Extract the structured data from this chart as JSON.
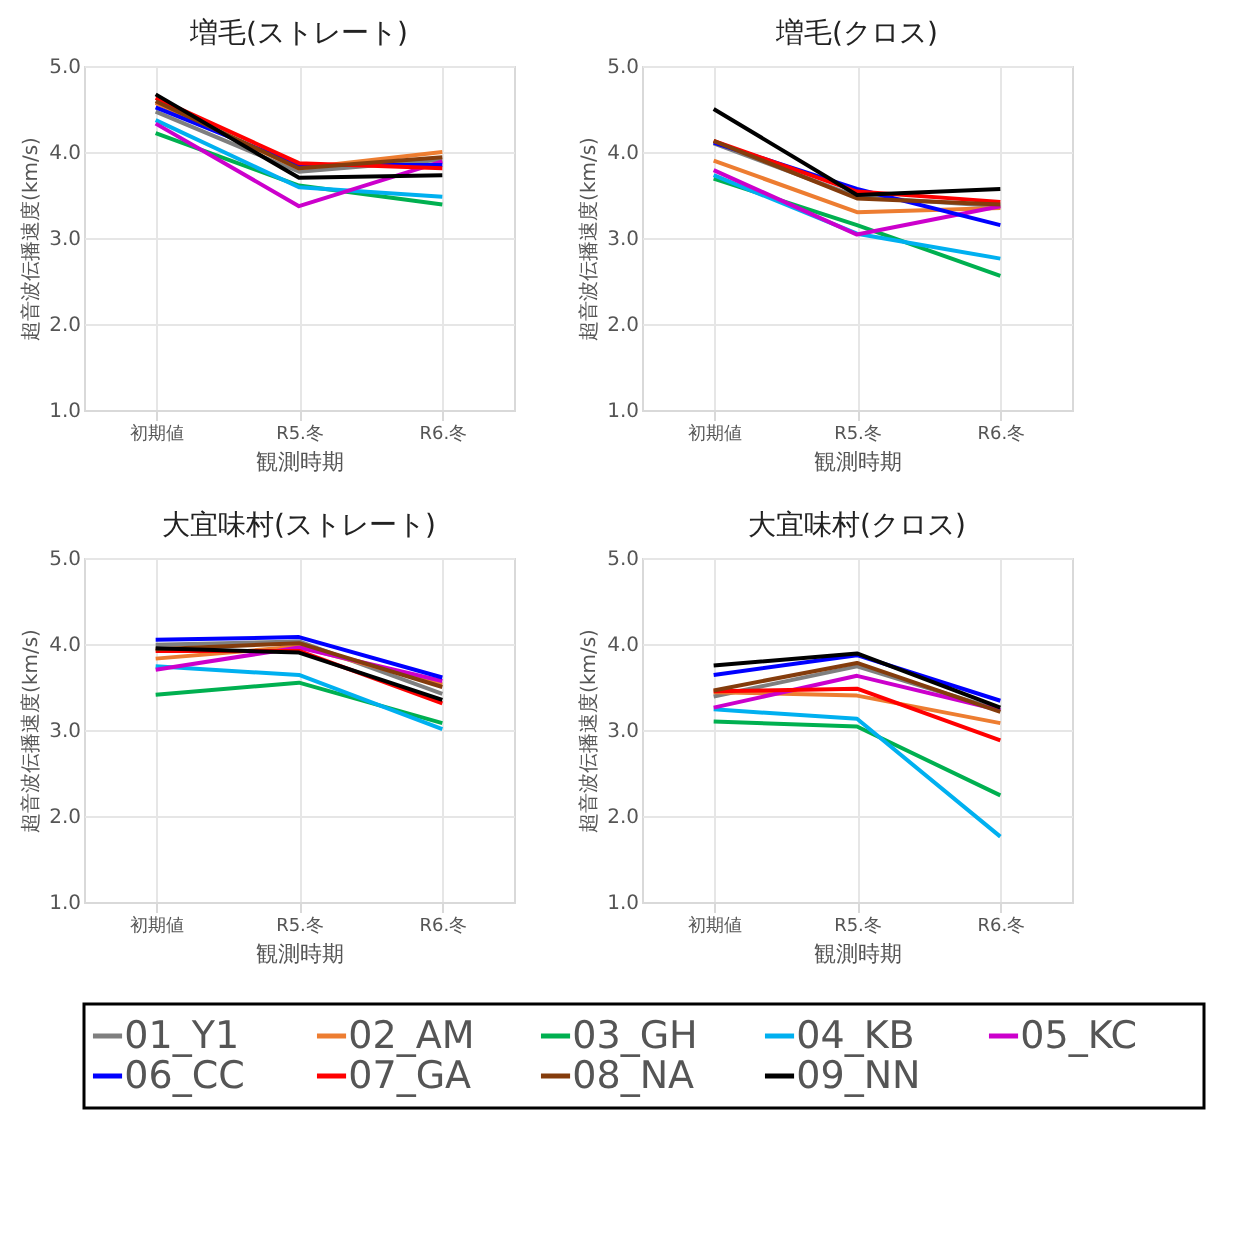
{
  "chart_data": [
    {
      "type": "line",
      "title": "増毛(ストレート)",
      "xlabel": "観測時期",
      "ylabel": "超音波伝播速度(km/s)",
      "categories": [
        "初期値",
        "R5.冬",
        "R6.冬"
      ],
      "ylim": [
        1,
        5
      ],
      "yticks": [
        {
          "value": 1,
          "label": "1.0"
        },
        {
          "value": 2,
          "label": "2.0"
        },
        {
          "value": 3,
          "label": "3.0"
        },
        {
          "value": 4,
          "label": "4.0"
        },
        {
          "value": 5,
          "label": "5.0"
        }
      ],
      "grid": true,
      "legend": "bottom",
      "marker": "none",
      "line_style": "solid",
      "series": [
        {
          "name": "01_Y1",
          "color": "#7f7f7f",
          "values": [
            4.47,
            3.77,
            3.91
          ]
        },
        {
          "name": "02_AM",
          "color": "#ed7d31",
          "values": [
            4.57,
            3.81,
            4.0
          ]
        },
        {
          "name": "03_GH",
          "color": "#00b050",
          "values": [
            4.22,
            3.61,
            3.39
          ]
        },
        {
          "name": "04_KB",
          "color": "#00b0f0",
          "values": [
            4.37,
            3.59,
            3.48
          ]
        },
        {
          "name": "05_KC",
          "color": "#cc00cc",
          "values": [
            4.33,
            3.37,
            3.89
          ]
        },
        {
          "name": "06_CC",
          "color": "#0000ff",
          "values": [
            4.52,
            3.85,
            3.85
          ]
        },
        {
          "name": "07_GA",
          "color": "#ff0000",
          "values": [
            4.63,
            3.87,
            3.81
          ]
        },
        {
          "name": "08_NA",
          "color": "#843c0c",
          "values": [
            4.59,
            3.81,
            3.94
          ]
        },
        {
          "name": "09_NN",
          "color": "#000000",
          "values": [
            4.67,
            3.7,
            3.73
          ]
        }
      ]
    },
    {
      "type": "line",
      "title": "増毛(クロス)",
      "xlabel": "観測時期",
      "ylabel": "超音波伝播速度(km/s)",
      "categories": [
        "初期値",
        "R5.冬",
        "R6.冬"
      ],
      "ylim": [
        1,
        5
      ],
      "yticks": [
        {
          "value": 1,
          "label": "1.0"
        },
        {
          "value": 2,
          "label": "2.0"
        },
        {
          "value": 3,
          "label": "3.0"
        },
        {
          "value": 4,
          "label": "4.0"
        },
        {
          "value": 5,
          "label": "5.0"
        }
      ],
      "grid": true,
      "legend": "bottom",
      "marker": "none",
      "line_style": "solid",
      "series": [
        {
          "name": "01_Y1",
          "color": "#7f7f7f",
          "values": [
            4.1,
            3.48,
            3.37
          ]
        },
        {
          "name": "02_AM",
          "color": "#ed7d31",
          "values": [
            3.9,
            3.3,
            3.35
          ]
        },
        {
          "name": "03_GH",
          "color": "#00b050",
          "values": [
            3.69,
            3.15,
            2.56
          ]
        },
        {
          "name": "04_KB",
          "color": "#00b0f0",
          "values": [
            3.73,
            3.05,
            2.76
          ]
        },
        {
          "name": "05_KC",
          "color": "#cc00cc",
          "values": [
            3.79,
            3.04,
            3.37
          ]
        },
        {
          "name": "06_CC",
          "color": "#0000ff",
          "values": [
            4.11,
            3.57,
            3.15
          ]
        },
        {
          "name": "07_GA",
          "color": "#ff0000",
          "values": [
            4.13,
            3.54,
            3.42
          ]
        },
        {
          "name": "08_NA",
          "color": "#843c0c",
          "values": [
            4.13,
            3.46,
            3.39
          ]
        },
        {
          "name": "09_NN",
          "color": "#000000",
          "values": [
            4.5,
            3.5,
            3.57
          ]
        }
      ]
    },
    {
      "type": "line",
      "title": "大宜味村(ストレート)",
      "xlabel": "観測時期",
      "ylabel": "超音波伝播速度(km/s)",
      "categories": [
        "初期値",
        "R5.冬",
        "R6.冬"
      ],
      "ylim": [
        1,
        5
      ],
      "yticks": [
        {
          "value": 1,
          "label": "1.0"
        },
        {
          "value": 2,
          "label": "2.0"
        },
        {
          "value": 3,
          "label": "3.0"
        },
        {
          "value": 4,
          "label": "4.0"
        },
        {
          "value": 5,
          "label": "5.0"
        }
      ],
      "grid": true,
      "legend": "bottom",
      "marker": "none",
      "line_style": "solid",
      "series": [
        {
          "name": "01_Y1",
          "color": "#7f7f7f",
          "values": [
            3.99,
            4.03,
            3.42
          ]
        },
        {
          "name": "02_AM",
          "color": "#ed7d31",
          "values": [
            3.83,
            3.97,
            3.53
          ]
        },
        {
          "name": "03_GH",
          "color": "#00b050",
          "values": [
            3.41,
            3.55,
            3.08
          ]
        },
        {
          "name": "04_KB",
          "color": "#00b0f0",
          "values": [
            3.74,
            3.64,
            3.01
          ]
        },
        {
          "name": "05_KC",
          "color": "#cc00cc",
          "values": [
            3.7,
            3.96,
            3.57
          ]
        },
        {
          "name": "06_CC",
          "color": "#0000ff",
          "values": [
            4.05,
            4.08,
            3.61
          ]
        },
        {
          "name": "07_GA",
          "color": "#ff0000",
          "values": [
            3.92,
            3.92,
            3.31
          ]
        },
        {
          "name": "08_NA",
          "color": "#843c0c",
          "values": [
            3.94,
            4.01,
            3.5
          ]
        },
        {
          "name": "09_NN",
          "color": "#000000",
          "values": [
            3.95,
            3.9,
            3.35
          ]
        }
      ]
    },
    {
      "type": "line",
      "title": "大宜味村(クロス)",
      "xlabel": "観測時期",
      "ylabel": "超音波伝播速度(km/s)",
      "categories": [
        "初期値",
        "R5.冬",
        "R6.冬"
      ],
      "ylim": [
        1,
        5
      ],
      "yticks": [
        {
          "value": 1,
          "label": "1.0"
        },
        {
          "value": 2,
          "label": "2.0"
        },
        {
          "value": 3,
          "label": "3.0"
        },
        {
          "value": 4,
          "label": "4.0"
        },
        {
          "value": 5,
          "label": "5.0"
        }
      ],
      "grid": true,
      "legend": "bottom",
      "marker": "none",
      "line_style": "solid",
      "series": [
        {
          "name": "01_Y1",
          "color": "#7f7f7f",
          "values": [
            3.39,
            3.74,
            3.23
          ]
        },
        {
          "name": "02_AM",
          "color": "#ed7d31",
          "values": [
            3.44,
            3.4,
            3.08
          ]
        },
        {
          "name": "03_GH",
          "color": "#00b050",
          "values": [
            3.1,
            3.04,
            2.24
          ]
        },
        {
          "name": "04_KB",
          "color": "#00b0f0",
          "values": [
            3.24,
            3.13,
            1.76
          ]
        },
        {
          "name": "05_KC",
          "color": "#cc00cc",
          "values": [
            3.26,
            3.63,
            3.23
          ]
        },
        {
          "name": "06_CC",
          "color": "#0000ff",
          "values": [
            3.64,
            3.87,
            3.34
          ]
        },
        {
          "name": "07_GA",
          "color": "#ff0000",
          "values": [
            3.45,
            3.48,
            2.88
          ]
        },
        {
          "name": "08_NA",
          "color": "#843c0c",
          "values": [
            3.46,
            3.78,
            3.21
          ]
        },
        {
          "name": "09_NN",
          "color": "#000000",
          "values": [
            3.75,
            3.89,
            3.26
          ]
        }
      ]
    }
  ]
}
